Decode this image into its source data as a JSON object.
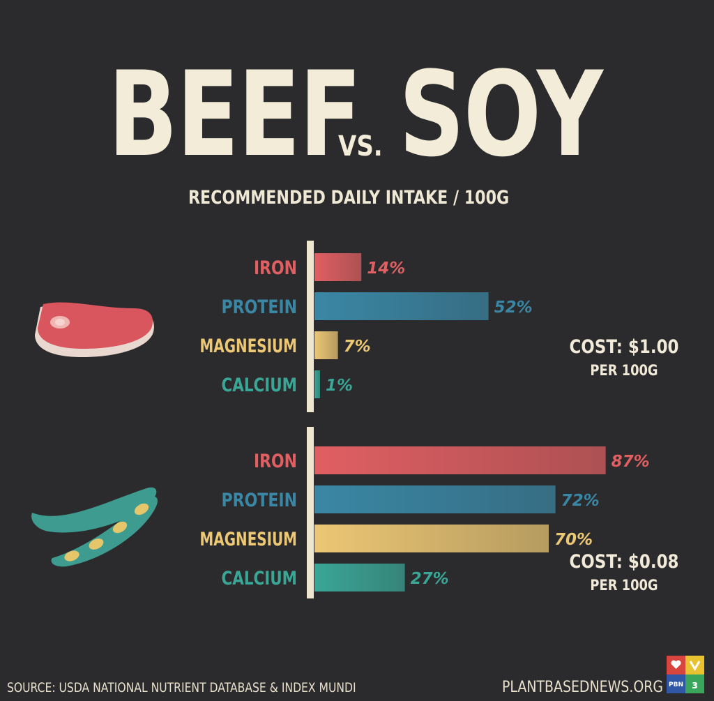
{
  "header": {
    "title_left": "BEEF",
    "title_vs": "VS.",
    "title_right": "SOY",
    "subtitle": "RECOMMENDED DAILY INTAKE / 100G"
  },
  "colors": {
    "background": "#2b2b2d",
    "cream": "#f3ecd9",
    "iron": "#e05f62",
    "protein": "#3a87a5",
    "magnesium": "#ecc774",
    "calcium": "#3aa696"
  },
  "chart_data": [
    {
      "type": "bar",
      "orientation": "horizontal",
      "group": "beef",
      "icon": "steak-icon",
      "categories": [
        "IRON",
        "PROTEIN",
        "MAGNESIUM",
        "CALCIUM"
      ],
      "values": [
        14,
        52,
        7,
        1
      ],
      "value_labels": [
        "14%",
        "52%",
        "7%",
        "1%"
      ],
      "unit": "%",
      "xlim": [
        0,
        100
      ],
      "colors": [
        "#e05f62",
        "#3a87a5",
        "#ecc774",
        "#3aa696"
      ],
      "cost": "COST: $1.00",
      "cost_unit": "PER 100G"
    },
    {
      "type": "bar",
      "orientation": "horizontal",
      "group": "soy",
      "icon": "soybean-pod-icon",
      "categories": [
        "IRON",
        "PROTEIN",
        "MAGNESIUM",
        "CALCIUM"
      ],
      "values": [
        87,
        72,
        70,
        27
      ],
      "value_labels": [
        "87%",
        "72%",
        "70%",
        "27%"
      ],
      "unit": "%",
      "xlim": [
        0,
        100
      ],
      "colors": [
        "#e05f62",
        "#3a87a5",
        "#ecc774",
        "#3aa696"
      ],
      "cost": "COST: $0.08",
      "cost_unit": "PER 100G"
    }
  ],
  "footer": {
    "source": "SOURCE: USDA NATIONAL NUTRIENT DATABASE & INDEX MUNDI",
    "site": "PLANTBASEDNEWS.ORG",
    "logo_text": "PBN"
  }
}
